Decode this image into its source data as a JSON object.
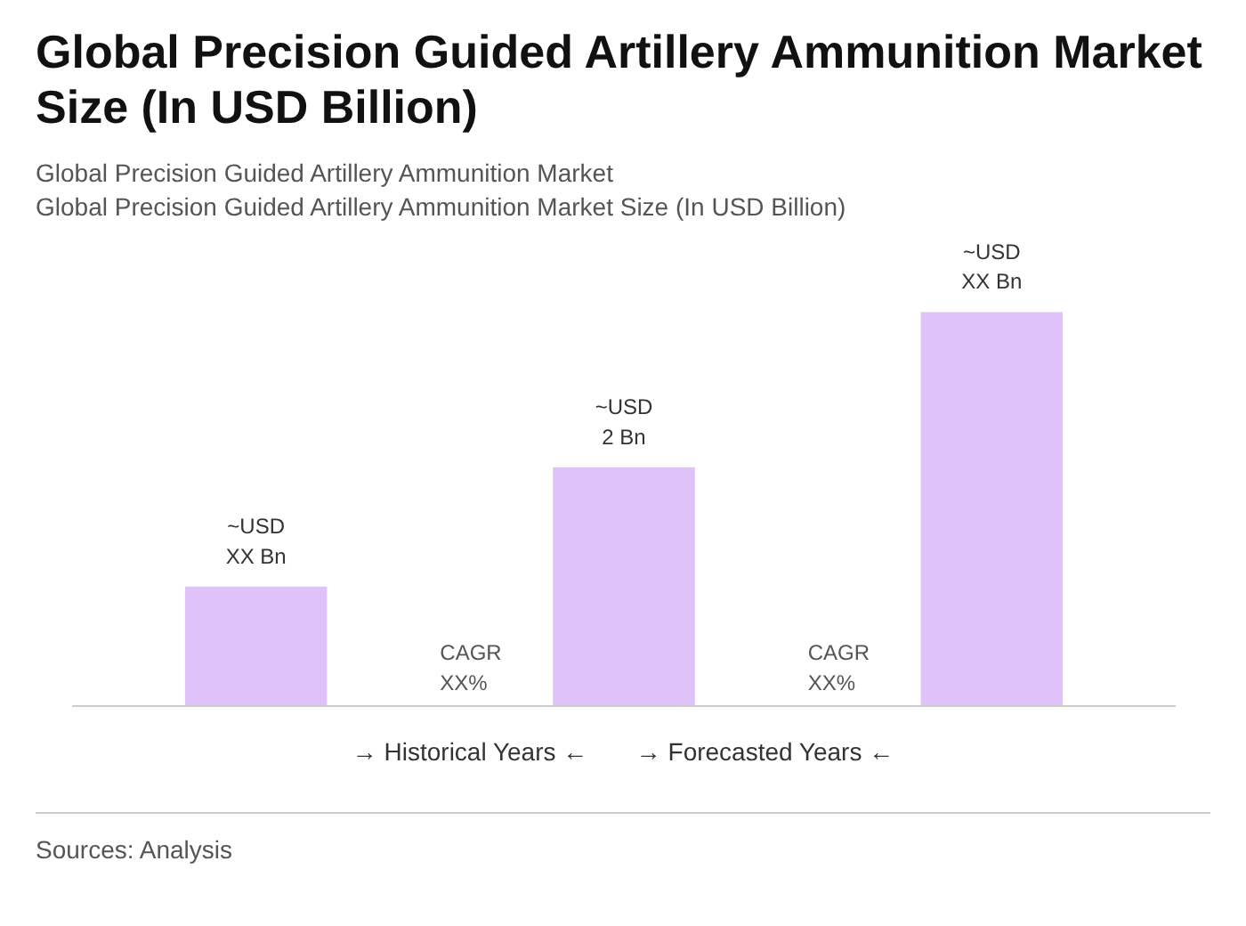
{
  "chart_data": {
    "type": "bar",
    "title": "Global Precision Guided Artillery Ammunition Market Size (In USD Billion)",
    "subtitle": "Global Precision Guided Artillery Ammunition Market\nGlobal Precision Guided Artillery Ammunition Market Size (In USD Billion)",
    "tick_labels": false,
    "categories": [
      null,
      null,
      null
    ],
    "values": [
      1.0,
      2,
      3.3
    ],
    "value_labels": [
      "~USD\nXX Bn",
      "~USD\n2 Bn",
      "~USD\nXX Bn"
    ],
    "color": "#dfc3f8",
    "annotations": [
      {
        "text": "CAGR\nXX%"
      },
      {
        "text": "CAGR\nXX%"
      },
      "→ Historical Years ←",
      "→ Forecasted Years ←",
      "Sources: Analysis"
    ]
  }
}
